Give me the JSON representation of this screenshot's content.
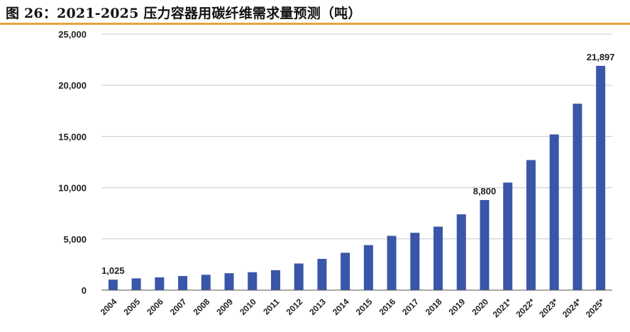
{
  "figure": {
    "title": "图 26：2021-2025 压力容器用碳纤维需求量预测（吨）"
  },
  "colors": {
    "bar": "#3a56a8",
    "title_rule": "#e8a33b",
    "grid": "#c8c8c8",
    "axis": "#555555",
    "text": "#222222"
  },
  "chart_data": {
    "type": "bar",
    "title": "",
    "xlabel": "",
    "ylabel": "",
    "ylim": [
      0,
      25000
    ],
    "yticks": [
      0,
      5000,
      10000,
      15000,
      20000,
      25000
    ],
    "ytick_labels": [
      "0",
      "5,000",
      "10,000",
      "15,000",
      "20,000",
      "25,000"
    ],
    "grid": true,
    "categories": [
      "2004",
      "2005",
      "2006",
      "2007",
      "2008",
      "2009",
      "2010",
      "2011",
      "2012",
      "2013",
      "2014",
      "2015",
      "2016",
      "2017",
      "2018",
      "2019",
      "2020",
      "2021*",
      "2022*",
      "2023*",
      "2024*",
      "2025*"
    ],
    "values": [
      1025,
      1150,
      1250,
      1380,
      1500,
      1650,
      1750,
      1950,
      2600,
      3050,
      3650,
      4400,
      5300,
      5600,
      6200,
      7400,
      8800,
      10500,
      12700,
      15200,
      18200,
      21897
    ],
    "data_labels": [
      {
        "category": "2004",
        "text": "1,025"
      },
      {
        "category": "2020",
        "text": "8,800"
      },
      {
        "category": "2025*",
        "text": "21,897"
      }
    ]
  }
}
